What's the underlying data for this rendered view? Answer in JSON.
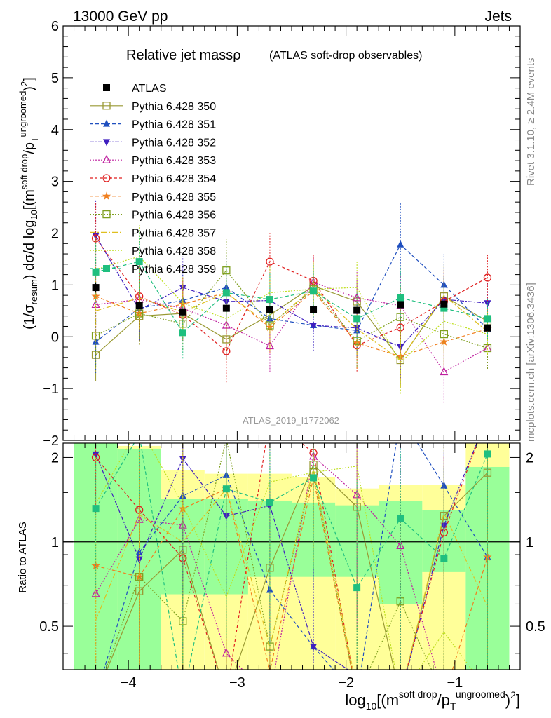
{
  "header": {
    "left": "13000 GeV pp",
    "right": "Jets"
  },
  "side": {
    "rivet": "Rivet 3.1.10, ≥ 2.4M events",
    "mcplots": "mcplots.cern.ch [arXiv:1306.3436]"
  },
  "chart_data": {
    "type": "line",
    "title": "Relative jet massρ",
    "subtitle": "(ATLAS soft-drop observables)",
    "analysis_id": "ATLAS_2019_I1772062",
    "ylabel_top": "(1/σresum) dσ/d log10[(m^soft drop/pT^ungroomed)^2]",
    "ylabel_ratio": "Ratio to ATLAS",
    "xlabel": "log10[(m^soft drop/pT^ungroomed)^2]",
    "xlim": [
      -4.6,
      -0.4
    ],
    "ylim": [
      -2,
      6
    ],
    "ratio_ylim": [
      0.35,
      2.25
    ],
    "x_ticks": [
      "−4",
      "−3",
      "−2",
      "−1"
    ],
    "y_ticks": [
      "−2",
      "−1",
      "0",
      "1",
      "2",
      "3",
      "4",
      "5",
      "6"
    ],
    "ratio_ticks": [
      "0.5",
      "1",
      "2"
    ],
    "x": [
      -4.3,
      -3.9,
      -3.5,
      -3.1,
      -2.7,
      -2.3,
      -1.9,
      -1.5,
      -1.1,
      -0.7
    ],
    "bin_edges": [
      -4.5,
      -4.1,
      -3.7,
      -3.3,
      -2.9,
      -2.5,
      -2.1,
      -1.7,
      -1.3,
      -0.9,
      -0.5
    ],
    "data": {
      "name": "ATLAS",
      "values": [
        0.95,
        0.6,
        0.48,
        0.55,
        0.52,
        0.52,
        0.51,
        0.62,
        0.63,
        0.17
      ],
      "errors": [
        0.1,
        0.06,
        0.05,
        0.06,
        0.05,
        0.05,
        0.05,
        0.06,
        0.06,
        0.04
      ]
    },
    "ratio_band_yellow": [
      [
        0.35,
        2.25
      ],
      [
        0.35,
        2.2
      ],
      [
        0.35,
        1.8
      ],
      [
        0.35,
        1.75
      ],
      [
        0.35,
        1.75
      ],
      [
        0.35,
        1.7
      ],
      [
        0.35,
        1.55
      ],
      [
        0.35,
        1.6
      ],
      [
        0.35,
        1.6
      ],
      [
        0.35,
        2.25
      ]
    ],
    "ratio_band_green": [
      [
        0.35,
        2.25
      ],
      [
        0.35,
        2.15
      ],
      [
        0.65,
        1.42
      ],
      [
        0.65,
        1.42
      ],
      [
        0.75,
        1.4
      ],
      [
        0.75,
        1.38
      ],
      [
        0.75,
        1.35
      ],
      [
        0.6,
        1.4
      ],
      [
        0.78,
        1.3
      ],
      [
        0.35,
        1.85
      ]
    ],
    "series": [
      {
        "name": "Pythia 6.428 350",
        "color": "#999933",
        "dash": "",
        "marker": "square-open",
        "values": [
          -0.35,
          0.4,
          0.45,
          -0.05,
          0.42,
          0.98,
          0.68,
          -0.45,
          0.78,
          0.3
        ],
        "errors": [
          0.5,
          0.5,
          0.5,
          0.4,
          0.4,
          0.4,
          0.4,
          0.5,
          0.4,
          0.3
        ]
      },
      {
        "name": "Pythia 6.428 351",
        "color": "#1f4fbf",
        "dash": "5,3",
        "marker": "triangle-up",
        "values": [
          -0.1,
          0.55,
          0.7,
          0.95,
          0.35,
          0.22,
          0.12,
          1.78,
          1.0,
          0.15
        ],
        "errors": [
          0.6,
          0.6,
          0.5,
          0.6,
          0.5,
          0.5,
          0.5,
          0.8,
          0.6,
          0.3
        ]
      },
      {
        "name": "Pythia 6.428 352",
        "color": "#3f1fbf",
        "dash": "6,2,2,2",
        "marker": "triangle-down",
        "values": [
          1.95,
          0.52,
          0.95,
          0.68,
          0.7,
          0.22,
          0.17,
          -0.2,
          0.72,
          0.65
        ],
        "errors": [
          0.7,
          0.6,
          0.6,
          0.6,
          0.5,
          0.5,
          0.5,
          0.6,
          0.6,
          0.4
        ]
      },
      {
        "name": "Pythia 6.428 353",
        "color": "#bf1f9f",
        "dash": "2,2",
        "marker": "triangle-up-open",
        "values": [
          0.62,
          0.72,
          0.55,
          0.22,
          -0.18,
          1.05,
          0.75,
          0.6,
          -0.68,
          -0.22
        ],
        "errors": [
          0.6,
          0.6,
          0.5,
          0.6,
          0.5,
          0.5,
          0.5,
          0.6,
          0.6,
          0.4
        ]
      },
      {
        "name": "Pythia 6.428 354",
        "color": "#e01f1f",
        "dash": "4,3",
        "marker": "circle-open",
        "values": [
          1.9,
          0.78,
          0.42,
          -0.28,
          1.45,
          1.08,
          -0.17,
          0.18,
          0.68,
          1.14
        ],
        "errors": [
          0.7,
          0.6,
          0.5,
          0.6,
          0.55,
          0.5,
          0.5,
          0.6,
          0.6,
          0.45
        ]
      },
      {
        "name": "Pythia 6.428 355",
        "color": "#f07f1f",
        "dash": "5,3",
        "marker": "star",
        "values": [
          0.78,
          0.45,
          0.63,
          0.85,
          0.18,
          0.88,
          -0.12,
          -0.38,
          -0.1,
          0.15
        ],
        "errors": [
          0.6,
          0.6,
          0.5,
          0.6,
          0.5,
          0.5,
          0.5,
          0.6,
          0.6,
          0.4
        ]
      },
      {
        "name": "Pythia 6.428 356",
        "color": "#7f9f1f",
        "dash": "2,2",
        "marker": "square-open",
        "values": [
          0.02,
          0.45,
          0.25,
          1.28,
          0.22,
          0.92,
          -0.08,
          0.38,
          0.05,
          -0.22
        ],
        "errors": [
          0.6,
          0.6,
          0.5,
          0.6,
          0.5,
          0.5,
          0.5,
          0.6,
          0.6,
          0.4
        ]
      },
      {
        "name": "Pythia 6.428 357",
        "color": "#dfbf1f",
        "dash": "8,3,2,3",
        "marker": "none",
        "values": [
          0.5,
          0.75,
          0.48,
          0.85,
          0.22,
          0.95,
          0.15,
          -0.45,
          0.8,
          0.1
        ],
        "errors": [
          0.6,
          0.6,
          0.5,
          0.6,
          0.5,
          0.5,
          0.5,
          0.6,
          0.6,
          0.4
        ]
      },
      {
        "name": "Pythia 6.428 358",
        "color": "#bfdf1f",
        "dash": "2,2",
        "marker": "none",
        "values": [
          1.3,
          1.55,
          0.65,
          0.35,
          0.85,
          0.92,
          0.95,
          -0.5,
          0.3,
          0.05
        ],
        "errors": [
          0.6,
          0.6,
          0.5,
          0.6,
          0.5,
          0.5,
          0.5,
          0.6,
          0.6,
          0.4
        ]
      },
      {
        "name": "Pythia 6.428 359",
        "color": "#1fbf7f",
        "dash": "5,3",
        "marker": "square",
        "values": [
          1.25,
          1.45,
          0.08,
          0.85,
          0.72,
          0.88,
          0.35,
          0.75,
          0.55,
          0.35
        ],
        "errors": [
          0.6,
          0.6,
          0.5,
          0.6,
          0.5,
          0.5,
          0.5,
          0.6,
          0.6,
          0.4
        ]
      }
    ]
  }
}
